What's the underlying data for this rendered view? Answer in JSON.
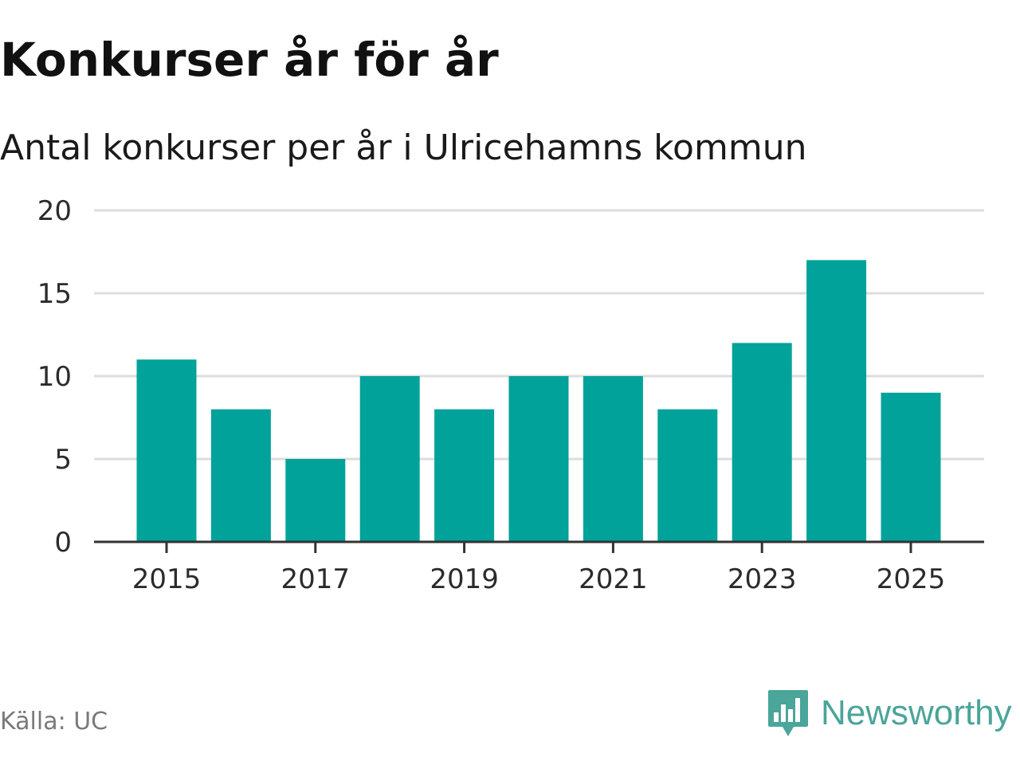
{
  "title": "Konkurser år för år",
  "subtitle": "Antal konkurser per år i Ulricehamns kommun",
  "source": "Källa: UC",
  "brand": {
    "name": "Newsworthy",
    "logo_icon": "newsworthy-bar-chart-speech-bubble-icon",
    "color": "#4aa59a"
  },
  "colors": {
    "bar": "#00a29a",
    "grid": "#dddddd",
    "axis": "#333333"
  },
  "chart_data": {
    "type": "bar",
    "categories": [
      "2015",
      "2016",
      "2017",
      "2018",
      "2019",
      "2020",
      "2021",
      "2022",
      "2023",
      "2024",
      "2025"
    ],
    "values": [
      11,
      8,
      5,
      10,
      8,
      10,
      10,
      8,
      12,
      17,
      9
    ],
    "x_tick_labels": [
      "2015",
      "2017",
      "2019",
      "2021",
      "2023",
      "2025"
    ],
    "y_ticks": [
      0,
      5,
      10,
      15,
      20
    ],
    "ylim": [
      0,
      20
    ],
    "xlabel": "",
    "ylabel": "",
    "grid": true,
    "legend": "none"
  }
}
